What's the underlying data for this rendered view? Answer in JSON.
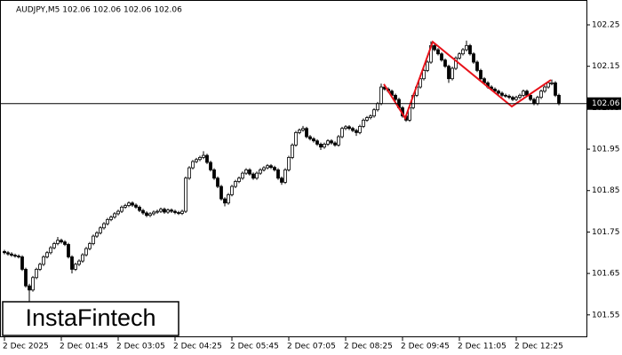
{
  "chart_data": {
    "type": "candlestick",
    "title": "AUDJPY,M5  102.06 102.06 102.06 102.06",
    "logo": "InstaFintech",
    "up_color": "#ffffff",
    "down_color": "#000000",
    "line_color": "#000000",
    "ylim": [
      101.496,
      102.31
    ],
    "yticks": [
      101.55,
      101.65,
      101.75,
      101.85,
      101.95,
      102.05,
      102.15,
      102.25
    ],
    "xlim": [
      -1.25,
      163.75
    ],
    "xticks": [
      {
        "value": 0,
        "label": "2 Dec 2025"
      },
      {
        "value": 16,
        "label": "2 Dec 01:45"
      },
      {
        "value": 32,
        "label": "2 Dec 03:05"
      },
      {
        "value": 48,
        "label": "2 Dec 04:25"
      },
      {
        "value": 64,
        "label": "2 Dec 05:45"
      },
      {
        "value": 80,
        "label": "2 Dec 07:05"
      },
      {
        "value": 96,
        "label": "2 Dec 08:25"
      },
      {
        "value": 112,
        "label": "2 Dec 09:45"
      },
      {
        "value": 128,
        "label": "2 Dec 11:05"
      },
      {
        "value": 144,
        "label": "2 Dec 12:25"
      }
    ],
    "last_price": 102.06,
    "pattern": {
      "color": "#e8121a",
      "x": [
        106.75,
        112.75,
        120.5,
        142.75,
        153.75
      ],
      "y": [
        102.107,
        102.025,
        102.209,
        102.053,
        102.117
      ]
    },
    "candles": [
      [
        101.703,
        101.707,
        101.696,
        101.7
      ],
      [
        101.7,
        101.704,
        101.693,
        101.697
      ],
      [
        101.697,
        101.701,
        101.69,
        101.694
      ],
      [
        101.694,
        101.698,
        101.688,
        101.692
      ],
      [
        101.692,
        101.696,
        101.686,
        101.69
      ],
      [
        101.69,
        101.694,
        101.656,
        101.66
      ],
      [
        101.66,
        101.664,
        101.616,
        101.62
      ],
      [
        101.62,
        101.625,
        101.58,
        101.61
      ],
      [
        101.61,
        101.644,
        101.606,
        101.64
      ],
      [
        101.64,
        101.664,
        101.636,
        101.66
      ],
      [
        101.66,
        101.676,
        101.656,
        101.672
      ],
      [
        101.672,
        101.694,
        101.668,
        101.69
      ],
      [
        101.69,
        101.704,
        101.686,
        101.7
      ],
      [
        101.7,
        101.716,
        101.696,
        101.712
      ],
      [
        101.712,
        101.726,
        101.708,
        101.722
      ],
      [
        101.722,
        101.738,
        101.718,
        101.73
      ],
      [
        101.73,
        101.734,
        101.722,
        101.726
      ],
      [
        101.726,
        101.73,
        101.716,
        101.72
      ],
      [
        101.72,
        101.724,
        101.686,
        101.69
      ],
      [
        101.69,
        101.694,
        101.65,
        101.66
      ],
      [
        101.66,
        101.676,
        101.656,
        101.672
      ],
      [
        101.672,
        101.684,
        101.668,
        101.68
      ],
      [
        101.68,
        101.699,
        101.676,
        101.695
      ],
      [
        101.695,
        101.714,
        101.691,
        101.71
      ],
      [
        101.71,
        101.726,
        101.706,
        101.722
      ],
      [
        101.722,
        101.744,
        101.718,
        101.74
      ],
      [
        101.74,
        101.752,
        101.736,
        101.748
      ],
      [
        101.748,
        101.764,
        101.744,
        101.76
      ],
      [
        101.76,
        101.774,
        101.756,
        101.77
      ],
      [
        101.77,
        101.784,
        101.766,
        101.78
      ],
      [
        101.78,
        101.79,
        101.776,
        101.786
      ],
      [
        101.786,
        101.798,
        101.782,
        101.794
      ],
      [
        101.794,
        101.804,
        101.79,
        101.8
      ],
      [
        101.8,
        101.814,
        101.796,
        101.81
      ],
      [
        101.81,
        101.818,
        101.806,
        101.814
      ],
      [
        101.814,
        101.824,
        101.81,
        101.82
      ],
      [
        101.82,
        101.824,
        101.811,
        101.815
      ],
      [
        101.815,
        101.819,
        101.806,
        101.81
      ],
      [
        101.81,
        101.814,
        101.798,
        101.802
      ],
      [
        101.802,
        101.806,
        101.792,
        101.796
      ],
      [
        101.796,
        101.8,
        101.786,
        101.79
      ],
      [
        101.79,
        101.798,
        101.786,
        101.794
      ],
      [
        101.794,
        101.802,
        101.79,
        101.798
      ],
      [
        101.798,
        101.804,
        101.794,
        101.8
      ],
      [
        101.8,
        101.809,
        101.796,
        101.805
      ],
      [
        101.805,
        101.809,
        101.794,
        101.798
      ],
      [
        101.798,
        101.807,
        101.794,
        101.803
      ],
      [
        101.803,
        101.807,
        101.796,
        101.8
      ],
      [
        101.8,
        101.804,
        101.793,
        101.797
      ],
      [
        101.797,
        101.801,
        101.791,
        101.795
      ],
      [
        101.795,
        101.804,
        101.791,
        101.8
      ],
      [
        101.8,
        101.884,
        101.796,
        101.88
      ],
      [
        101.88,
        101.909,
        101.876,
        101.905
      ],
      [
        101.905,
        101.924,
        101.901,
        101.92
      ],
      [
        101.92,
        101.929,
        101.916,
        101.925
      ],
      [
        101.925,
        101.934,
        101.921,
        101.93
      ],
      [
        101.93,
        101.945,
        101.926,
        101.935
      ],
      [
        101.935,
        101.939,
        101.914,
        101.918
      ],
      [
        101.918,
        101.922,
        101.896,
        101.9
      ],
      [
        101.9,
        101.904,
        101.876,
        101.88
      ],
      [
        101.88,
        101.884,
        101.856,
        101.86
      ],
      [
        101.86,
        101.864,
        101.826,
        101.83
      ],
      [
        101.83,
        101.834,
        101.812,
        101.82
      ],
      [
        101.82,
        101.844,
        101.816,
        101.84
      ],
      [
        101.84,
        101.864,
        101.836,
        101.86
      ],
      [
        101.86,
        101.876,
        101.856,
        101.872
      ],
      [
        101.872,
        101.884,
        101.868,
        101.88
      ],
      [
        101.88,
        101.896,
        101.876,
        101.892
      ],
      [
        101.892,
        101.904,
        101.888,
        101.9
      ],
      [
        101.9,
        101.904,
        101.886,
        101.89
      ],
      [
        101.89,
        101.894,
        101.876,
        101.88
      ],
      [
        101.88,
        101.896,
        101.876,
        101.892
      ],
      [
        101.892,
        101.904,
        101.888,
        101.9
      ],
      [
        101.9,
        101.909,
        101.896,
        101.905
      ],
      [
        101.905,
        101.914,
        101.901,
        101.91
      ],
      [
        101.91,
        101.914,
        101.902,
        101.906
      ],
      [
        101.906,
        101.91,
        101.896,
        101.9
      ],
      [
        101.9,
        101.904,
        101.876,
        101.88
      ],
      [
        101.88,
        101.884,
        101.864,
        101.87
      ],
      [
        101.87,
        101.904,
        101.866,
        101.9
      ],
      [
        101.9,
        101.934,
        101.896,
        101.93
      ],
      [
        101.93,
        101.964,
        101.926,
        101.96
      ],
      [
        101.96,
        101.994,
        101.956,
        101.99
      ],
      [
        101.99,
        102.0,
        101.986,
        101.996
      ],
      [
        101.996,
        102.006,
        101.992,
        102.0
      ],
      [
        102.0,
        102.004,
        101.976,
        101.98
      ],
      [
        101.98,
        101.984,
        101.971,
        101.975
      ],
      [
        101.975,
        101.979,
        101.966,
        101.97
      ],
      [
        101.97,
        101.974,
        101.958,
        101.962
      ],
      [
        101.962,
        101.966,
        101.948,
        101.955
      ],
      [
        101.955,
        101.966,
        101.951,
        101.962
      ],
      [
        101.962,
        101.974,
        101.958,
        101.97
      ],
      [
        101.97,
        101.974,
        101.961,
        101.965
      ],
      [
        101.965,
        101.969,
        101.956,
        101.96
      ],
      [
        101.96,
        101.984,
        101.956,
        101.98
      ],
      [
        101.98,
        102.004,
        101.976,
        102.0
      ],
      [
        102.0,
        102.008,
        101.996,
        102.004
      ],
      [
        102.004,
        102.008,
        101.996,
        102.0
      ],
      [
        102.0,
        102.004,
        101.991,
        101.995
      ],
      [
        101.995,
        101.999,
        101.982,
        101.99
      ],
      [
        101.99,
        102.009,
        101.986,
        102.005
      ],
      [
        102.005,
        102.024,
        102.001,
        102.02
      ],
      [
        102.02,
        102.03,
        102.016,
        102.026
      ],
      [
        102.026,
        102.034,
        102.022,
        102.03
      ],
      [
        102.03,
        102.049,
        102.026,
        102.045
      ],
      [
        102.045,
        102.064,
        102.041,
        102.06
      ],
      [
        102.06,
        102.108,
        102.056,
        102.1
      ],
      [
        102.1,
        102.104,
        102.091,
        102.095
      ],
      [
        102.095,
        102.099,
        102.086,
        102.09
      ],
      [
        102.09,
        102.094,
        102.076,
        102.08
      ],
      [
        102.08,
        102.084,
        102.066,
        102.07
      ],
      [
        102.07,
        102.074,
        102.046,
        102.05
      ],
      [
        102.05,
        102.054,
        102.026,
        102.03
      ],
      [
        102.03,
        102.034,
        102.016,
        102.02
      ],
      [
        102.02,
        102.054,
        102.016,
        102.05
      ],
      [
        102.05,
        102.084,
        102.046,
        102.08
      ],
      [
        102.08,
        102.104,
        102.076,
        102.1
      ],
      [
        102.1,
        102.124,
        102.096,
        102.12
      ],
      [
        102.12,
        102.144,
        102.116,
        102.14
      ],
      [
        102.14,
        102.164,
        102.136,
        102.16
      ],
      [
        102.16,
        102.21,
        102.156,
        102.2
      ],
      [
        102.2,
        102.204,
        102.186,
        102.19
      ],
      [
        102.19,
        102.194,
        102.176,
        102.18
      ],
      [
        102.18,
        102.184,
        102.161,
        102.165
      ],
      [
        102.165,
        102.169,
        102.146,
        102.15
      ],
      [
        102.15,
        102.154,
        102.11,
        102.12
      ],
      [
        102.12,
        102.149,
        102.116,
        102.145
      ],
      [
        102.145,
        102.174,
        102.141,
        102.17
      ],
      [
        102.17,
        102.184,
        102.166,
        102.18
      ],
      [
        102.18,
        102.194,
        102.176,
        102.19
      ],
      [
        102.19,
        102.212,
        102.186,
        102.2
      ],
      [
        102.2,
        102.204,
        102.176,
        102.18
      ],
      [
        102.18,
        102.184,
        102.156,
        102.16
      ],
      [
        102.16,
        102.164,
        102.136,
        102.14
      ],
      [
        102.14,
        102.144,
        102.116,
        102.12
      ],
      [
        102.12,
        102.124,
        102.106,
        102.11
      ],
      [
        102.11,
        102.114,
        102.096,
        102.1
      ],
      [
        102.1,
        102.104,
        102.091,
        102.095
      ],
      [
        102.095,
        102.099,
        102.086,
        102.09
      ],
      [
        102.09,
        102.094,
        102.081,
        102.085
      ],
      [
        102.085,
        102.089,
        102.076,
        102.08
      ],
      [
        102.08,
        102.084,
        102.074,
        102.078
      ],
      [
        102.078,
        102.082,
        102.071,
        102.075
      ],
      [
        102.075,
        102.079,
        102.066,
        102.07
      ],
      [
        102.07,
        102.079,
        102.066,
        102.075
      ],
      [
        102.075,
        102.084,
        102.071,
        102.08
      ],
      [
        102.08,
        102.094,
        102.076,
        102.09
      ],
      [
        102.09,
        102.094,
        102.076,
        102.08
      ],
      [
        102.08,
        102.084,
        102.066,
        102.07
      ],
      [
        102.07,
        102.074,
        102.056,
        102.06
      ],
      [
        102.06,
        102.079,
        102.056,
        102.075
      ],
      [
        102.075,
        102.094,
        102.071,
        102.09
      ],
      [
        102.09,
        102.104,
        102.086,
        102.1
      ],
      [
        102.1,
        102.114,
        102.096,
        102.11
      ],
      [
        102.11,
        102.118,
        102.104,
        102.11
      ],
      [
        102.11,
        102.114,
        102.076,
        102.08
      ],
      [
        102.08,
        102.084,
        102.056,
        102.06
      ]
    ]
  }
}
